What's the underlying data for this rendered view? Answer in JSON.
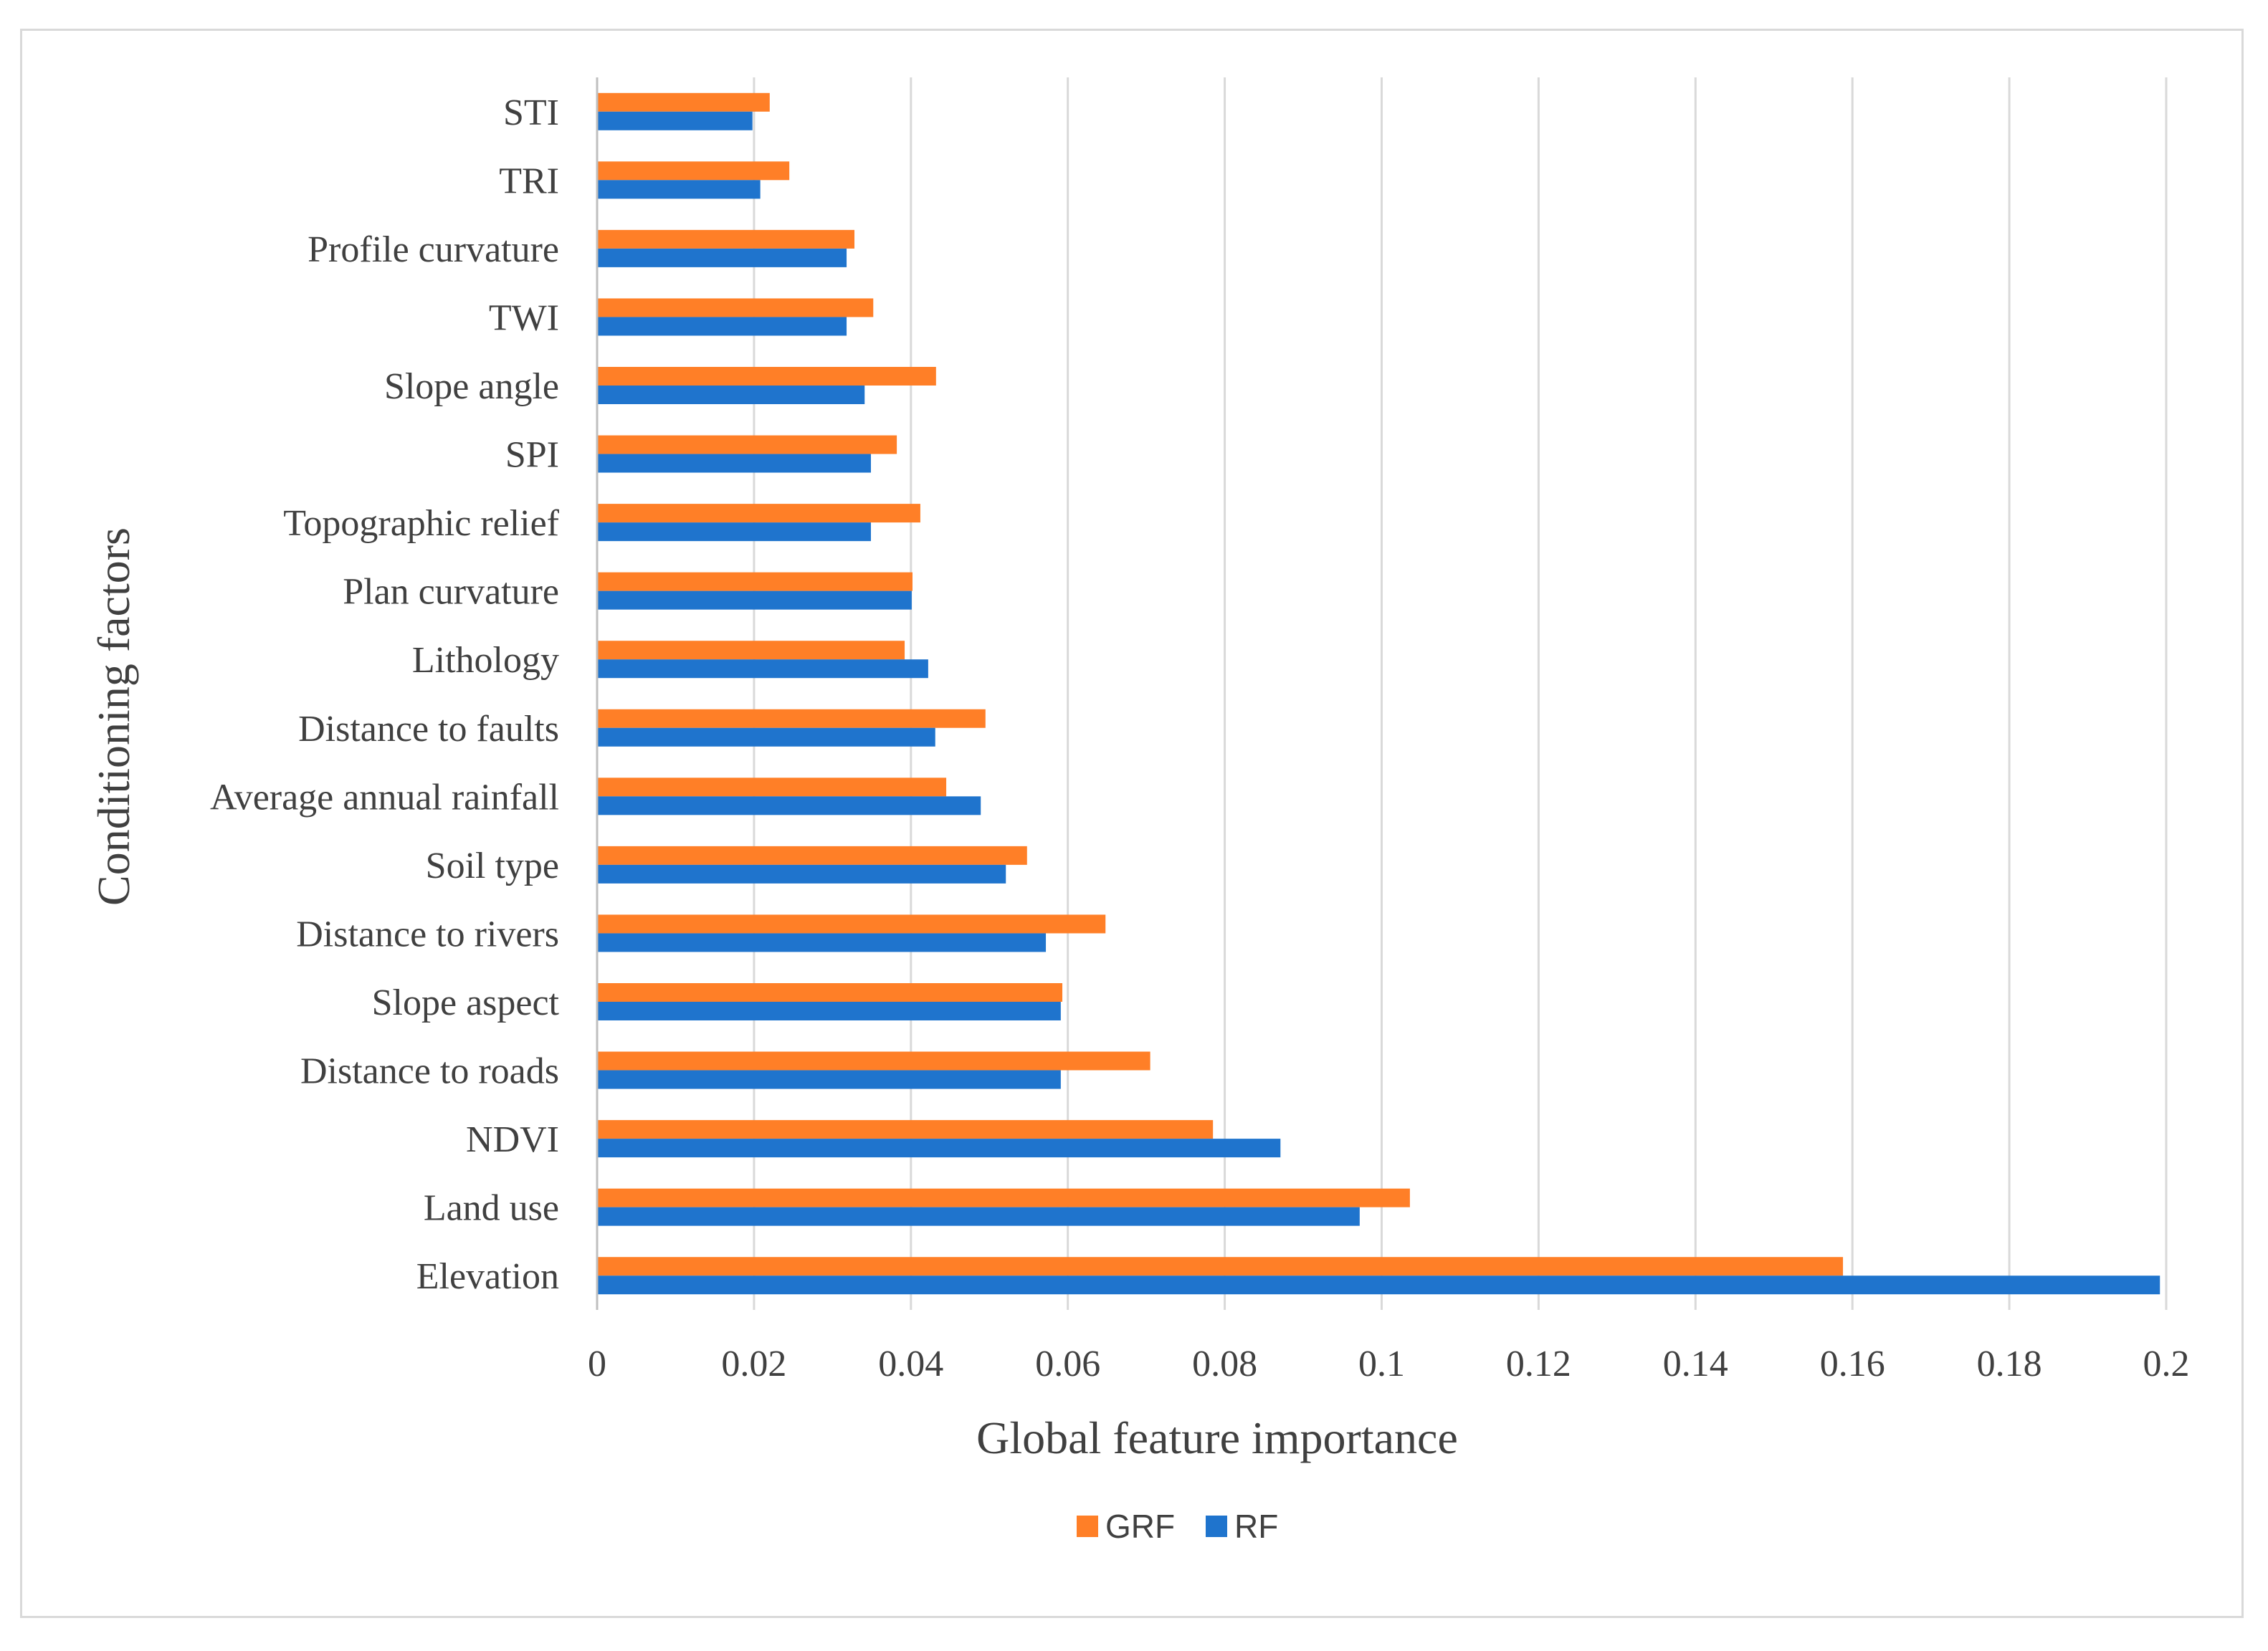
{
  "chart_data": {
    "type": "bar",
    "orientation": "horizontal",
    "title": "",
    "xlabel": "Global feature importance",
    "ylabel": "Conditioning factors",
    "xlim": [
      0,
      0.2
    ],
    "xticks": [
      0,
      0.02,
      0.04,
      0.06,
      0.08,
      0.1,
      0.12,
      0.14,
      0.16,
      0.18,
      0.2
    ],
    "xtick_labels": [
      "0",
      "0.02",
      "0.04",
      "0.06",
      "0.08",
      "0.1",
      "0.12",
      "0.14",
      "0.16",
      "0.18",
      "0.2"
    ],
    "grid": "vertical",
    "legend_position": "bottom",
    "categories": [
      "STI",
      "TRI",
      "Profile curvature",
      "TWI",
      "Slope angle",
      "SPI",
      "Topographic relief",
      "Plan curvature",
      "Lithology",
      "Distance to faults",
      "Average annual rainfall",
      "Soil type",
      "Distance to rivers",
      "Slope aspect",
      "Distance to roads",
      "NDVI",
      "Land use",
      "Elevation"
    ],
    "series": [
      {
        "name": "GRF",
        "color": "#ff7f27",
        "values": [
          0.022,
          0.0245,
          0.0328,
          0.0352,
          0.0432,
          0.0382,
          0.0412,
          0.0402,
          0.0392,
          0.0495,
          0.0445,
          0.0548,
          0.0648,
          0.0593,
          0.0705,
          0.0785,
          0.1036,
          0.1588
        ]
      },
      {
        "name": "RF",
        "color": "#1f74cd",
        "values": [
          0.0198,
          0.0208,
          0.0318,
          0.0318,
          0.0341,
          0.0349,
          0.0349,
          0.0401,
          0.0422,
          0.0431,
          0.0489,
          0.0521,
          0.0572,
          0.0591,
          0.0591,
          0.0871,
          0.0972,
          0.1992
        ]
      }
    ]
  }
}
